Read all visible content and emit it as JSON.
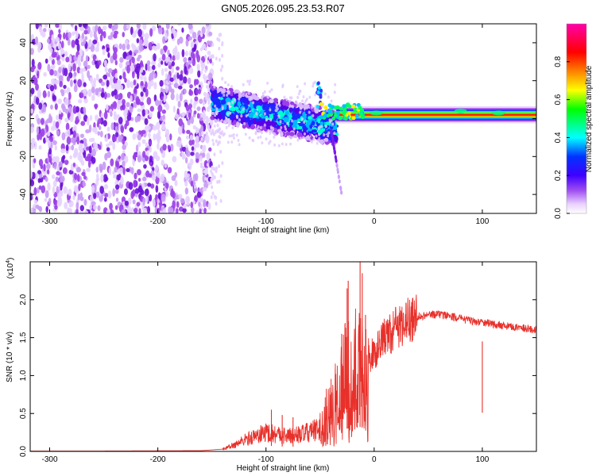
{
  "chart_data": [
    {
      "type": "heatmap",
      "title": "GN05.2026.095.23.53.R07",
      "xlabel": "Height of straight line (km)",
      "ylabel": "Frequency (Hz)",
      "xlim": [
        -318,
        150
      ],
      "ylim": [
        -50,
        50
      ],
      "x_ticks": [
        -300,
        -200,
        -100,
        0,
        100
      ],
      "y_ticks": [
        -40,
        -20,
        0,
        20,
        40
      ],
      "colorbar": {
        "label": "Normalized spectral amplitude",
        "range": [
          0,
          1
        ],
        "ticks": [
          0.0,
          0.2,
          0.4,
          0.6,
          0.8
        ],
        "colors": [
          "#ffffff",
          "#e8d0ff",
          "#8a2be2",
          "#3f00ff",
          "#0000ff",
          "#00ffff",
          "#00ff00",
          "#ffff00",
          "#ff8000",
          "#ff0000",
          "#ff00aa"
        ]
      },
      "regions": [
        {
          "name": "noise-field",
          "x_range": [
            -318,
            -150
          ],
          "f_range": [
            -50,
            50
          ],
          "amplitude": 0.15
        },
        {
          "name": "transition-cluster",
          "x_range": [
            -150,
            -35
          ],
          "f_center_start": 8,
          "f_center_end": -5,
          "amplitude": 0.4
        },
        {
          "name": "carrier-line",
          "x_range": [
            -35,
            150
          ],
          "f_center": 2,
          "amplitude": 0.9
        }
      ]
    },
    {
      "type": "line",
      "title": "",
      "xlabel": "Height of straight line (km)",
      "ylabel": "SNR (10 * v/v)",
      "y_scale_label": "(x10",
      "y_scale_exp": "4",
      "y_scale_suffix": ")",
      "xlim": [
        -318,
        150
      ],
      "ylim": [
        0,
        2.5
      ],
      "x_ticks": [
        -300,
        -200,
        -100,
        0,
        100
      ],
      "y_ticks": [
        0.0,
        0.5,
        1.0,
        1.5,
        2.0
      ],
      "series": [
        {
          "name": "SNR",
          "color": "#e8302a",
          "envelope": [
            [
              -318,
              0.005
            ],
            [
              -250,
              0.005
            ],
            [
              -160,
              0.01
            ],
            [
              -140,
              0.03
            ],
            [
              -130,
              0.08
            ],
            [
              -120,
              0.15
            ],
            [
              -110,
              0.2
            ],
            [
              -100,
              0.25
            ],
            [
              -90,
              0.23
            ],
            [
              -80,
              0.2
            ],
            [
              -70,
              0.22
            ],
            [
              -60,
              0.25
            ],
            [
              -50,
              0.3
            ],
            [
              -45,
              0.45
            ],
            [
              -40,
              0.55
            ],
            [
              -35,
              0.65
            ],
            [
              -30,
              0.85
            ],
            [
              -25,
              1.0
            ],
            [
              -20,
              1.05
            ],
            [
              -15,
              1.05
            ],
            [
              -10,
              1.1
            ],
            [
              -5,
              1.2
            ],
            [
              0,
              1.3
            ],
            [
              10,
              1.5
            ],
            [
              20,
              1.62
            ],
            [
              30,
              1.72
            ],
            [
              40,
              1.78
            ],
            [
              50,
              1.8
            ],
            [
              60,
              1.81
            ],
            [
              70,
              1.79
            ],
            [
              80,
              1.75
            ],
            [
              90,
              1.72
            ],
            [
              100,
              1.7
            ],
            [
              110,
              1.68
            ],
            [
              120,
              1.66
            ],
            [
              130,
              1.64
            ],
            [
              140,
              1.62
            ],
            [
              150,
              1.6
            ]
          ],
          "spikes": [
            [
              -95,
              0.55
            ],
            [
              -85,
              0.48
            ],
            [
              -75,
              0.45
            ],
            [
              -30,
              1.55
            ],
            [
              -25,
              2.15
            ],
            [
              -24,
              2.25
            ],
            [
              -13,
              2.5
            ],
            [
              -11,
              2.35
            ],
            [
              -8,
              1.8
            ],
            [
              100,
              1.45
            ]
          ]
        }
      ]
    }
  ]
}
